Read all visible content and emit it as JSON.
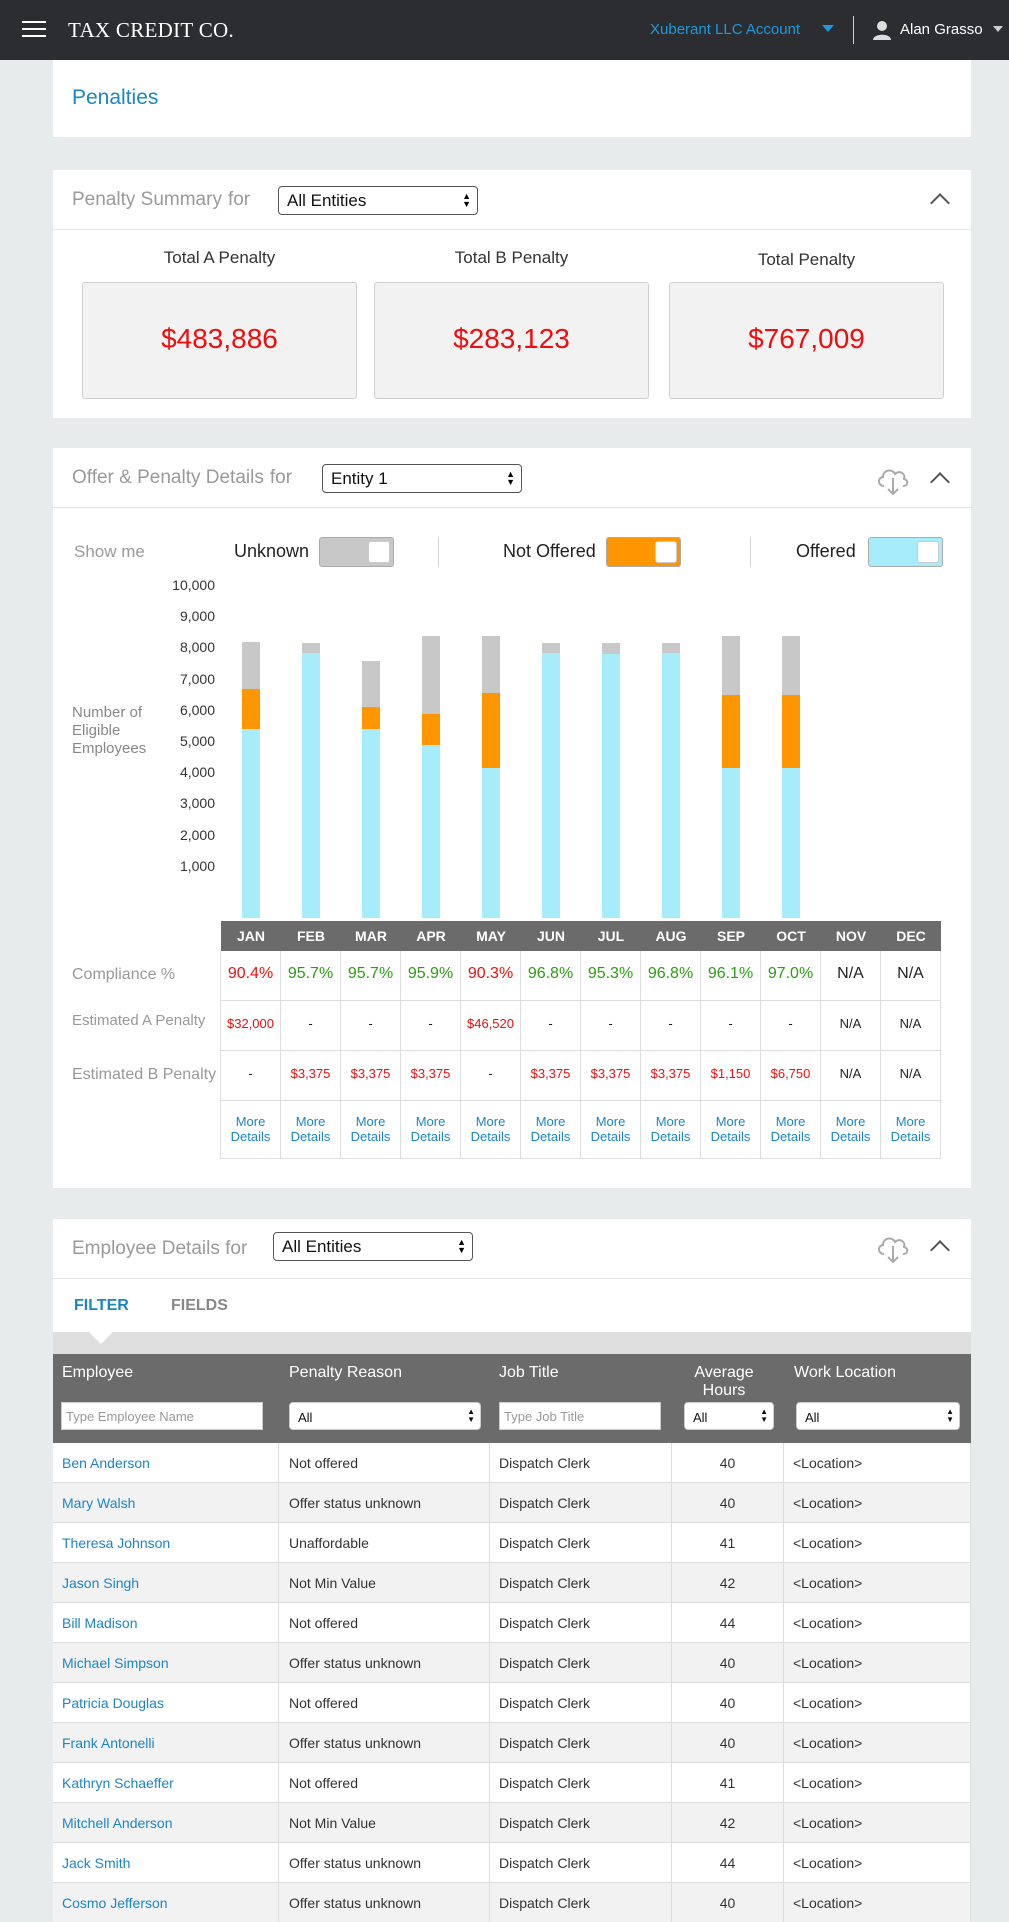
{
  "header": {
    "brand": "TAX CREDIT CO.",
    "account": "Xuberant LLC Account",
    "user": "Alan Grasso"
  },
  "page": {
    "title": "Penalties"
  },
  "summary": {
    "title": "Penalty Summary",
    "for": "for",
    "entity": "All Entities",
    "cards": [
      {
        "label": "Total A Penalty",
        "value": "$483,886"
      },
      {
        "label": "Total B Penalty",
        "value": "$283,123"
      },
      {
        "label": "Total Penalty",
        "value": "$767,009"
      }
    ]
  },
  "details": {
    "title": "Offer & Penalty Details",
    "for": "for",
    "entity": "Entity 1",
    "show_me": "Show me",
    "toggles": [
      {
        "label": "Unknown",
        "color": "#c8c8c8",
        "on": true
      },
      {
        "label": "Not Offered",
        "color": "#ff9600",
        "on": true
      },
      {
        "label": "Offered",
        "color": "#a6ecfb",
        "on": true
      }
    ],
    "y_axis_label": [
      "Number of",
      "Eligible",
      "Employees"
    ],
    "row_labels": {
      "compliance": "Compliance %",
      "a_penalty": "Estimated A Penalty",
      "b_penalty": "Estimated B Penalty"
    },
    "more_details": [
      "More",
      "Details"
    ],
    "compliance_colors": {
      "ok": "#2a9d12",
      "bad": "#f00d0d"
    }
  },
  "chart_data": {
    "type": "bar",
    "stacked": true,
    "categories": [
      "JAN",
      "FEB",
      "MAR",
      "APR",
      "MAY",
      "JUN",
      "JUL",
      "AUG",
      "SEP",
      "OCT",
      "NOV",
      "DEC"
    ],
    "ylim": [
      0,
      10000
    ],
    "yticks": [
      "1,000",
      "2,000",
      "3,000",
      "4,000",
      "5,000",
      "6,000",
      "7,000",
      "8,000",
      "9,000",
      "10,000"
    ],
    "ylabel": "Number of Eligible Employees",
    "series": [
      {
        "name": "Offered",
        "color": "#a6ecfb",
        "values": [
          6050,
          8500,
          6050,
          5550,
          4800,
          8500,
          8450,
          8500,
          4800,
          4800,
          null,
          null
        ]
      },
      {
        "name": "Not Offered",
        "color": "#ff9600",
        "values": [
          1300,
          0,
          700,
          1000,
          2400,
          0,
          0,
          0,
          2350,
          2350,
          null,
          null
        ]
      },
      {
        "name": "Unknown",
        "color": "#c8c8c8",
        "values": [
          1500,
          300,
          1500,
          2500,
          1850,
          300,
          350,
          300,
          1900,
          1900,
          null,
          null
        ]
      }
    ],
    "compliance": [
      "90.4%",
      "95.7%",
      "95.7%",
      "95.9%",
      "90.3%",
      "96.8%",
      "95.3%",
      "96.8%",
      "96.1%",
      "97.0%",
      "N/A",
      "N/A"
    ],
    "compliance_ok": [
      false,
      true,
      true,
      true,
      false,
      true,
      true,
      true,
      true,
      true,
      null,
      null
    ],
    "a_penalty": [
      "$32,000",
      "-",
      "-",
      "-",
      "$46,520",
      "-",
      "-",
      "-",
      "-",
      "-",
      "N/A",
      "N/A"
    ],
    "b_penalty": [
      "-",
      "$3,375",
      "$3,375",
      "$3,375",
      "-",
      "$3,375",
      "$3,375",
      "$3,375",
      "$1,150",
      "$6,750",
      "N/A",
      "N/A"
    ]
  },
  "employees": {
    "title": "Employee Details for",
    "entity": "All Entities",
    "tabs": [
      "FILTER",
      "FIELDS"
    ],
    "columns": [
      "Employee",
      "Penalty Reason",
      "Job Title",
      "Average Hours",
      "Work Location"
    ],
    "filters": {
      "employee_placeholder": "Type Employee Name",
      "reason": "All",
      "job_placeholder": "Type Job Title",
      "hours": "All",
      "location": "All"
    },
    "rows": [
      {
        "name": "Ben Anderson",
        "reason": "Not offered",
        "job": "Dispatch Clerk",
        "hours": "40",
        "location": "<Location>"
      },
      {
        "name": "Mary Walsh",
        "reason": "Offer status unknown",
        "job": "Dispatch Clerk",
        "hours": "40",
        "location": "<Location>"
      },
      {
        "name": "Theresa Johnson",
        "reason": "Unaffordable",
        "job": "Dispatch Clerk",
        "hours": "41",
        "location": "<Location>"
      },
      {
        "name": "Jason Singh",
        "reason": "Not Min Value",
        "job": "Dispatch Clerk",
        "hours": "42",
        "location": "<Location>"
      },
      {
        "name": "Bill Madison",
        "reason": "Not offered",
        "job": "Dispatch Clerk",
        "hours": "44",
        "location": "<Location>"
      },
      {
        "name": "Michael Simpson",
        "reason": "Offer status unknown",
        "job": "Dispatch Clerk",
        "hours": "40",
        "location": "<Location>"
      },
      {
        "name": "Patricia Douglas",
        "reason": "Not offered",
        "job": "Dispatch Clerk",
        "hours": "40",
        "location": "<Location>"
      },
      {
        "name": "Frank Antonelli",
        "reason": "Offer status unknown",
        "job": "Dispatch Clerk",
        "hours": "40",
        "location": "<Location>"
      },
      {
        "name": "Kathryn Schaeffer",
        "reason": "Not offered",
        "job": "Dispatch Clerk",
        "hours": "41",
        "location": "<Location>"
      },
      {
        "name": "Mitchell Anderson",
        "reason": "Not Min Value",
        "job": "Dispatch Clerk",
        "hours": "42",
        "location": "<Location>"
      },
      {
        "name": "Jack Smith",
        "reason": "Offer status unknown",
        "job": "Dispatch Clerk",
        "hours": "44",
        "location": "<Location>"
      },
      {
        "name": "Cosmo Jefferson",
        "reason": "Offer status unknown",
        "job": "Dispatch Clerk",
        "hours": "40",
        "location": "<Location>"
      }
    ]
  }
}
